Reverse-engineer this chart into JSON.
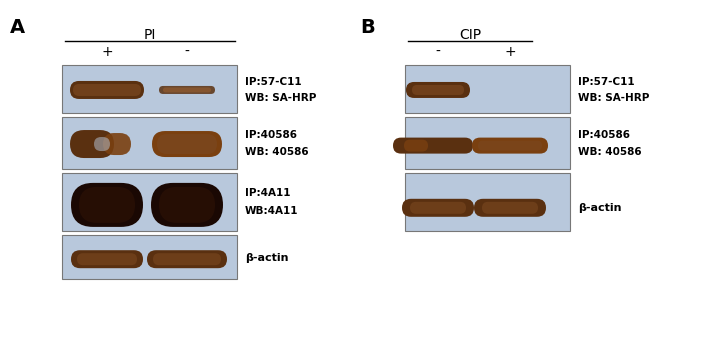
{
  "panel_A_label": "A",
  "panel_B_label": "B",
  "panel_A_title": "PI",
  "panel_B_title": "CIP",
  "panel_A_plus": "+",
  "panel_A_minus": "-",
  "panel_B_minus": "-",
  "panel_B_plus": "+",
  "blot_bg_color": "#b8c8dc",
  "band_color_dark": "#5a3010",
  "band_color_mid": "#7a4820",
  "band_color_thin": "#6a3818",
  "bg_color": "#ffffff",
  "text_color": "#000000",
  "label_fontsize": 7.5,
  "title_fontsize": 10,
  "panel_label_fontsize": 14
}
